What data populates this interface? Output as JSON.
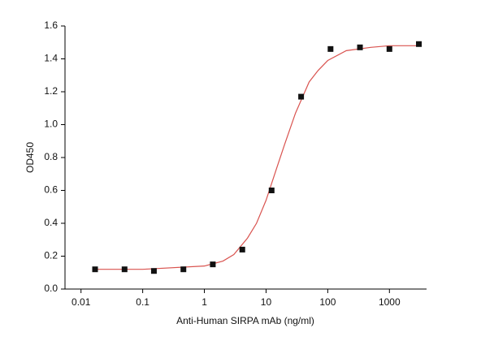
{
  "chart_data": {
    "type": "scatter",
    "x_label": "Anti-Human SIRPA mAb (ng/ml)",
    "y_label": "OD450",
    "xlog": true,
    "xlim": [
      0.0055,
      4000
    ],
    "xticks": [
      0.01,
      0.1,
      1,
      10,
      100,
      1000
    ],
    "ylim": [
      0,
      1.6
    ],
    "yticks": [
      {
        "value": 0,
        "label": "0.0"
      },
      0.2,
      0.4,
      0.6,
      0.8,
      {
        "value": 1,
        "label": "1.0"
      },
      1.2,
      1.4,
      1.6
    ],
    "series": [
      {
        "type": "scatter",
        "color": "#111111",
        "x": [
          0.0169,
          0.0508,
          0.152,
          0.457,
          1.37,
          4.12,
          12.3,
          37.0,
          111,
          333,
          1000,
          3000
        ],
        "values": [
          0.12,
          0.12,
          0.11,
          0.12,
          0.15,
          0.24,
          0.6,
          1.17,
          1.46,
          1.47,
          1.46,
          1.49
        ]
      },
      {
        "type": "line",
        "color": "#d9534f",
        "x": [
          0.017,
          0.1,
          1,
          2,
          3,
          5,
          7,
          10,
          15,
          20,
          30,
          50,
          70,
          100,
          200,
          500,
          1000,
          3000
        ],
        "values": [
          0.12,
          0.12,
          0.14,
          0.17,
          0.21,
          0.31,
          0.4,
          0.54,
          0.74,
          0.88,
          1.07,
          1.26,
          1.33,
          1.39,
          1.45,
          1.47,
          1.48,
          1.48
        ]
      }
    ]
  }
}
